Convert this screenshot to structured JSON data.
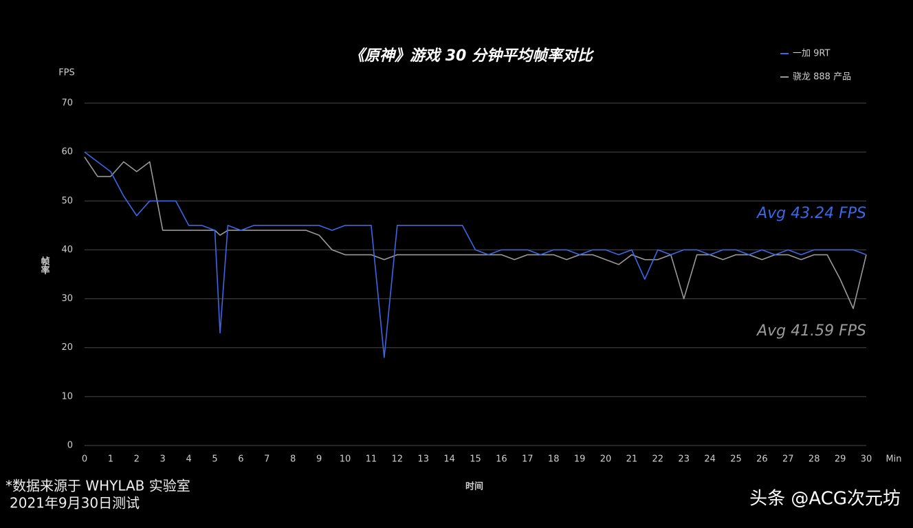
{
  "chart_data": {
    "type": "line",
    "title": "《原神》游戏 30 分钟平均帧率对比",
    "y_unit": "FPS",
    "x_unit": "Min",
    "ylabel": "帧率",
    "xlabel": "时间",
    "legend": "upper right",
    "grid": true,
    "xlim": [
      0,
      30
    ],
    "ylim": [
      0,
      70
    ],
    "xticks": [
      0,
      1,
      2,
      3,
      4,
      5,
      6,
      7,
      8,
      9,
      10,
      11,
      12,
      13,
      14,
      15,
      16,
      17,
      18,
      19,
      20,
      21,
      22,
      23,
      24,
      25,
      26,
      27,
      28,
      29,
      30
    ],
    "yticks": [
      0,
      10,
      20,
      30,
      40,
      50,
      60,
      70
    ],
    "x": [
      0,
      0.5,
      1,
      1.5,
      2,
      2.5,
      3,
      3.5,
      4,
      4.5,
      5,
      5.2,
      5.5,
      6,
      6.5,
      7,
      7.5,
      8,
      8.5,
      9,
      9.5,
      10,
      10.5,
      11,
      11.5,
      12,
      12.5,
      13,
      13.5,
      14,
      14.5,
      15,
      15.5,
      16,
      16.5,
      17,
      17.5,
      18,
      18.5,
      19,
      19.5,
      20,
      20.5,
      21,
      21.5,
      22,
      22.5,
      23,
      23.5,
      24,
      24.5,
      25,
      25.5,
      26,
      26.5,
      27,
      27.5,
      28,
      28.5,
      29,
      29.5,
      30
    ],
    "series": [
      {
        "name": "一加 9RT",
        "color": "#3a68e6",
        "values": [
          60,
          58,
          56,
          51,
          47,
          50,
          50,
          50,
          45,
          45,
          44,
          23,
          45,
          44,
          45,
          45,
          45,
          45,
          45,
          45,
          44,
          45,
          45,
          45,
          18,
          45,
          45,
          45,
          45,
          45,
          45,
          40,
          39,
          40,
          40,
          40,
          39,
          40,
          40,
          39,
          40,
          40,
          39,
          40,
          34,
          40,
          39,
          40,
          40,
          39,
          40,
          40,
          39,
          40,
          39,
          40,
          39,
          40,
          40,
          40,
          40,
          39
        ]
      },
      {
        "name": "骁龙 888 产品",
        "color": "#9a9a9a",
        "values": [
          59,
          55,
          55,
          58,
          56,
          58,
          44,
          44,
          44,
          44,
          44,
          43,
          44,
          44,
          44,
          44,
          44,
          44,
          44,
          43,
          40,
          39,
          39,
          39,
          38,
          39,
          39,
          39,
          39,
          39,
          39,
          39,
          39,
          39,
          38,
          39,
          39,
          39,
          38,
          39,
          39,
          38,
          37,
          39,
          38,
          38,
          39,
          30,
          39,
          39,
          38,
          39,
          39,
          38,
          39,
          39,
          38,
          39,
          39,
          34,
          28,
          39
        ]
      }
    ],
    "annotations": [
      "Avg 43.24 FPS",
      "Avg 41.59 FPS"
    ]
  },
  "notes": {
    "footnote": [
      "*数据来源于 WHYLAB 实验室",
      "2021年9月30日测试"
    ],
    "watermark": "头条 @ACG次元坊"
  }
}
